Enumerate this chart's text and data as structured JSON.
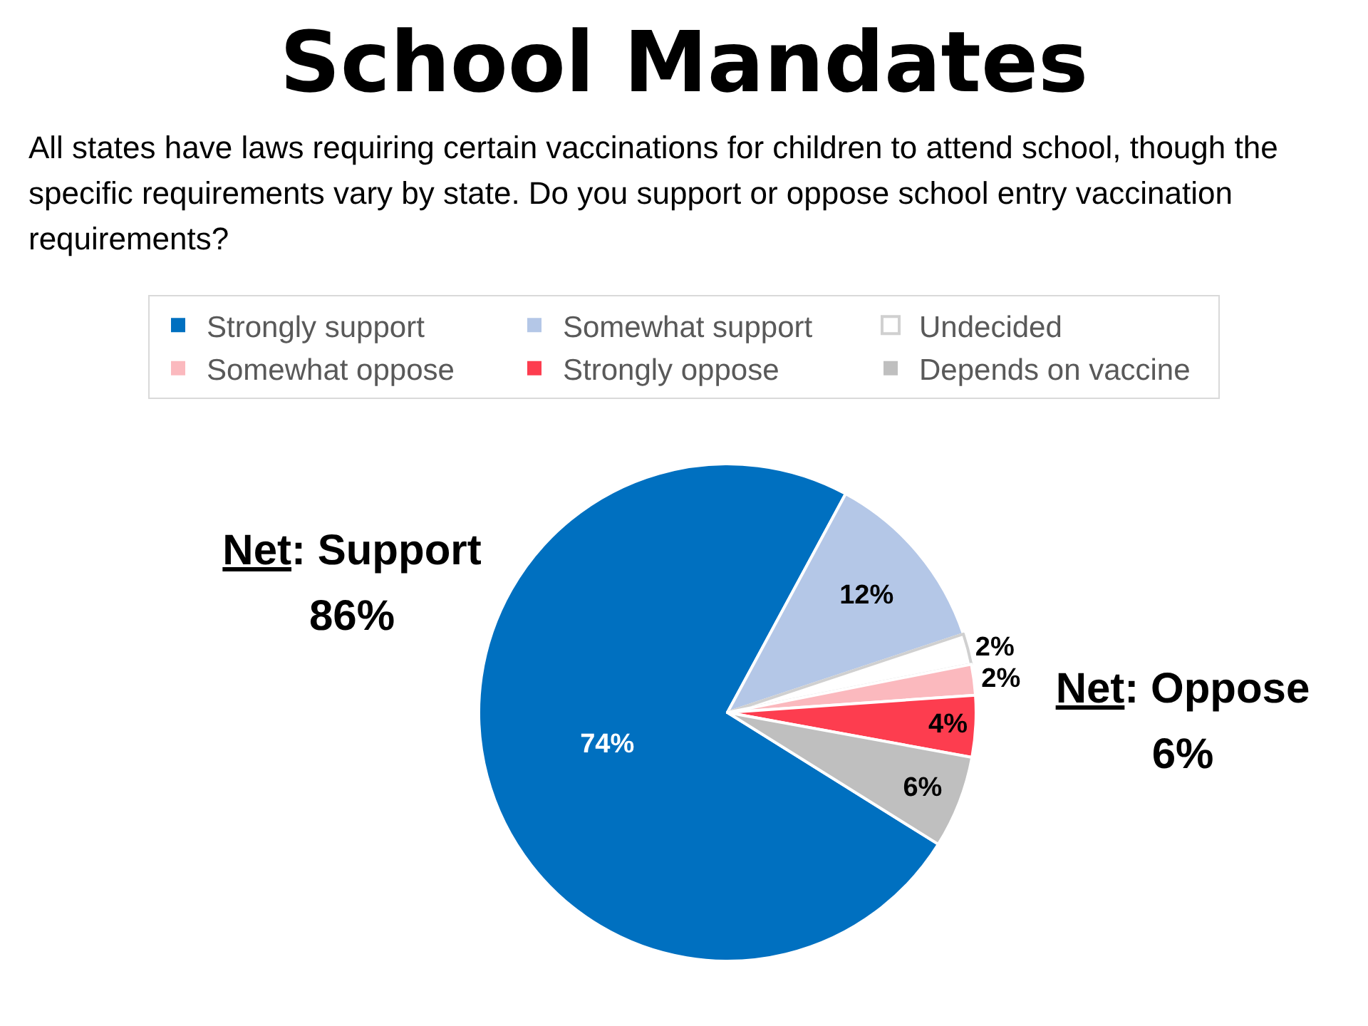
{
  "chart_data": {
    "type": "pie",
    "title": "School Mandates",
    "subtitle": "All states have laws requiring certain vaccinations for children to attend school, though the specific requirements vary by state. Do you support or oppose school entry vaccination requirements?",
    "categories": [
      "Strongly support",
      "Somewhat support",
      "Undecided",
      "Somewhat oppose",
      "Strongly oppose",
      "Depends on vaccine"
    ],
    "values": [
      74,
      12,
      2,
      2,
      4,
      6
    ],
    "colors": [
      "#0070c0",
      "#b4c7e7",
      "#ffffff",
      "#fbb9be",
      "#fd3d4f",
      "#bfbfbf"
    ],
    "value_labels": [
      "74%",
      "12%",
      "2%",
      "2%",
      "4%",
      "6%"
    ],
    "legend": "top",
    "annotations": [
      "Net: Support\n86%",
      "Net: Oppose\n6%"
    ]
  }
}
